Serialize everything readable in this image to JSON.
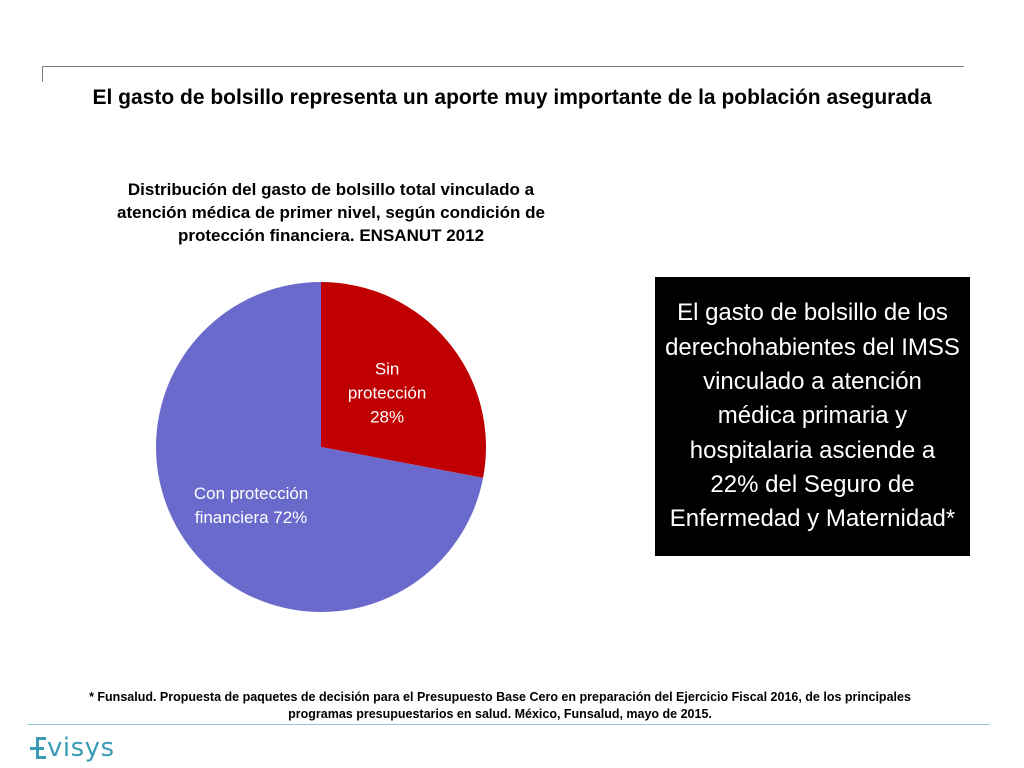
{
  "slide": {
    "title": "El gasto de bolsillo representa un aporte muy importante de la población asegurada"
  },
  "chart_data": {
    "type": "pie",
    "title": "Distribución del gasto de bolsillo total vinculado a atención médica de primer nivel, según condición de protección financiera. ENSANUT 2012",
    "slices": [
      {
        "name": "Sin protección",
        "label_lines": [
          "Sin",
          "protección",
          "28%"
        ],
        "value": 28,
        "color": "#c00000"
      },
      {
        "name": "Con protección financiera",
        "label_lines": [
          "Con protección",
          "financiera 72%"
        ],
        "value": 72,
        "color": "#6a6acd"
      }
    ]
  },
  "callout": {
    "text": "El gasto de bolsillo de los derechohabientes del IMSS  vinculado a atención médica primaria y hospitalaria asciende a 22% del Seguro de Enfermedad y Maternidad*"
  },
  "footnote": {
    "text": "* Funsalud. Propuesta de paquetes de decisión para el Presupuesto Base Cero en preparación del Ejercicio Fiscal 2016, de los principales programas presupuestarios en salud. México, Funsalud, mayo de 2015."
  },
  "logo": {
    "text": "visys",
    "icon": "evisys-e-icon",
    "color": "#3a9bb5"
  }
}
